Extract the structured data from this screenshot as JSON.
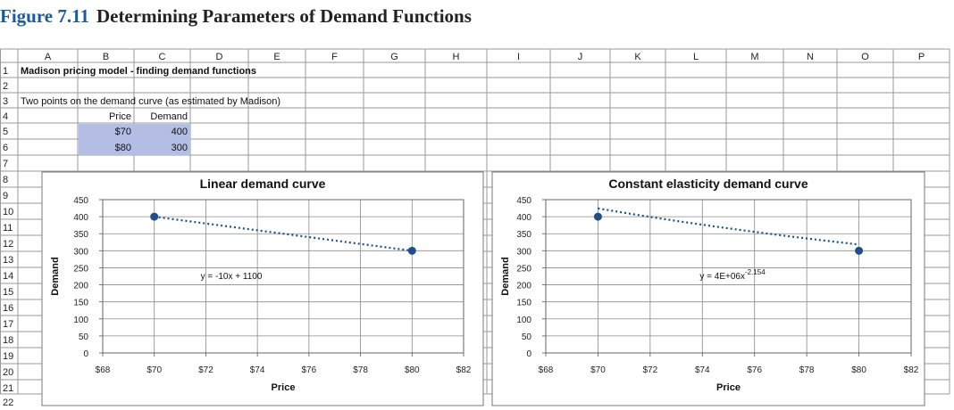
{
  "figure": {
    "label": "Figure 7.11",
    "title": "Determining Parameters of Demand Functions"
  },
  "columns": [
    "A",
    "B",
    "C",
    "D",
    "E",
    "F",
    "G",
    "H",
    "I",
    "J",
    "K",
    "L",
    "M",
    "N",
    "O",
    "P"
  ],
  "rows": [
    "1",
    "2",
    "3",
    "4",
    "5",
    "6",
    "7",
    "8",
    "9",
    "10",
    "11",
    "12",
    "13",
    "14",
    "15",
    "16",
    "17",
    "18",
    "19",
    "20",
    "21",
    "22"
  ],
  "cells": {
    "A1": "Madison pricing model - finding demand functions",
    "A3": "Two points on the demand curve (as estimated by Madison)",
    "B4": "Price",
    "C4": "Demand",
    "B5": "$70",
    "C5": "400",
    "B6": "$80",
    "C6": "300"
  },
  "colors": {
    "highlight": "#b4bde4",
    "marker": "#1f4e8c",
    "grid": "#8a8a8a",
    "plot_border": "#666666"
  },
  "chart_data": [
    {
      "type": "scatter",
      "title": "Linear demand curve",
      "xlabel": "Price",
      "ylabel": "Demand",
      "x_ticks": [
        "$68",
        "$70",
        "$72",
        "$74",
        "$76",
        "$78",
        "$80",
        "$82"
      ],
      "y_ticks": [
        "0",
        "50",
        "100",
        "150",
        "200",
        "250",
        "300",
        "350",
        "400",
        "450"
      ],
      "xlim": [
        68,
        82
      ],
      "ylim": [
        0,
        450
      ],
      "grid": true,
      "points": [
        {
          "x": 70,
          "y": 400
        },
        {
          "x": 80,
          "y": 300
        }
      ],
      "trendline": {
        "type": "linear",
        "slope": -10,
        "intercept": 1100
      },
      "equation_label": "y = -10x + 1100"
    },
    {
      "type": "scatter",
      "title": "Constant elasticity demand curve",
      "xlabel": "Price",
      "ylabel": "Demand",
      "x_ticks": [
        "$68",
        "$70",
        "$72",
        "$74",
        "$76",
        "$78",
        "$80",
        "$82"
      ],
      "y_ticks": [
        "0",
        "50",
        "100",
        "150",
        "200",
        "250",
        "300",
        "350",
        "400",
        "450"
      ],
      "xlim": [
        68,
        82
      ],
      "ylim": [
        0,
        450
      ],
      "grid": true,
      "points": [
        {
          "x": 70,
          "y": 400
        },
        {
          "x": 80,
          "y": 300
        }
      ],
      "trendline": {
        "type": "power",
        "coefficient": 4000000.0,
        "exponent": -2.154
      },
      "equation_label": "y = 4E+06x",
      "equation_exponent": "-2.154"
    }
  ]
}
